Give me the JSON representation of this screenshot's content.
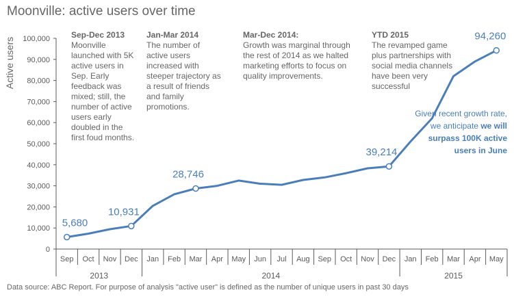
{
  "chart_data": {
    "type": "line",
    "title": "Moonville: active users over time",
    "ylabel": "Active users",
    "ylim": [
      0,
      100000
    ],
    "yticks": [
      "0",
      "10,000",
      "20,000",
      "30,000",
      "40,000",
      "50,000",
      "60,000",
      "70,000",
      "80,000",
      "90,000",
      "100,000"
    ],
    "x": [
      "Sep",
      "Oct",
      "Nov",
      "Dec",
      "Jan",
      "Feb",
      "Mar",
      "Apr",
      "May",
      "Jun",
      "Jul",
      "Aug",
      "Sep",
      "Oct",
      "Nov",
      "Dec",
      "Jan",
      "Feb",
      "Mar",
      "Apr",
      "May"
    ],
    "years": [
      {
        "label": "2013",
        "start": 0,
        "end": 3
      },
      {
        "label": "2014",
        "start": 4,
        "end": 15
      },
      {
        "label": "2015",
        "start": 16,
        "end": 20
      }
    ],
    "series": [
      {
        "values": [
          5680,
          7300,
          9400,
          10931,
          20500,
          26000,
          28746,
          30000,
          32500,
          31000,
          30500,
          32800,
          34000,
          36000,
          38300,
          39214,
          51000,
          62000,
          82000,
          89000,
          94260
        ]
      }
    ],
    "markers": [
      {
        "index": 0,
        "label": "5,680"
      },
      {
        "index": 3,
        "label": "10,931"
      },
      {
        "index": 6,
        "label": "28,746"
      },
      {
        "index": 15,
        "label": "39,214"
      },
      {
        "index": 20,
        "label": "94,260"
      }
    ],
    "grid": false,
    "legend": "none",
    "line_color": "#4a7ebb"
  },
  "annotations": [
    {
      "heading": "Sep-Dec 2013",
      "body": "Moonville launched with 5K active users in Sep. Early feedback was mixed; still, the number of active users early doubled in the first foud months."
    },
    {
      "heading": "Jan-Mar 2014",
      "body": "The number of active users increased with steeper trajectory as a result of friends and family promotions."
    },
    {
      "heading": "Mar-Dec 2014:",
      "body": "Growth was marginal through the rest of 2014 as we halted marketing efforts to focus on quality improvements."
    },
    {
      "heading": "YTD 2015",
      "body": "The revamped game plus partnerships with social media channels have been very successful"
    }
  ],
  "forecast": {
    "text": "Given recent growth rate, we anticipate ",
    "bold": "we will surpass 100K active users in June"
  },
  "footnote": "Data source: ABC Report. For purpose of analysis \"active user\" is defined as the number of unique users in past 30 days"
}
